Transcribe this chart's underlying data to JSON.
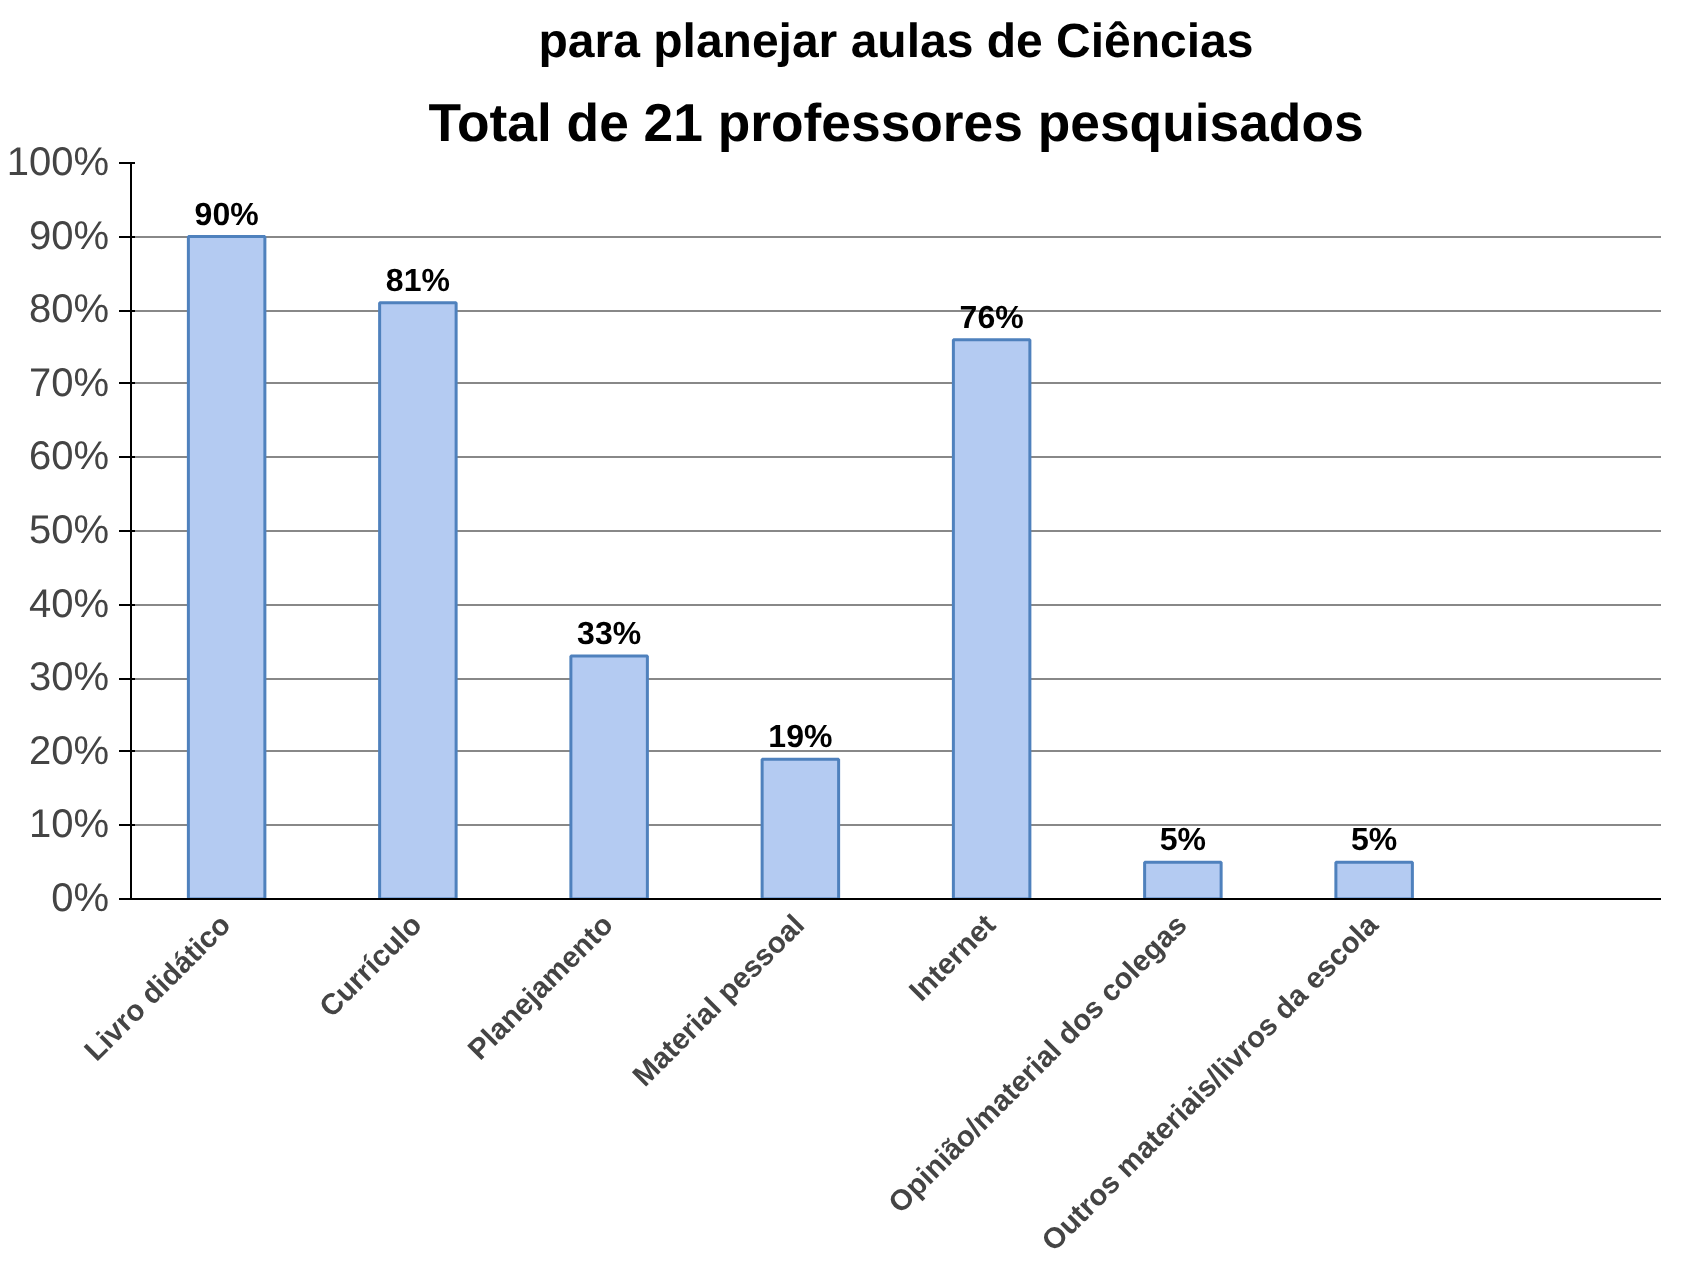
{
  "chart_data": {
    "type": "bar",
    "title": "para planejar aulas de Ciências",
    "subtitle": "Total de 21 professores pesquisados",
    "categories": [
      "Livro didático",
      "Currículo",
      "Planejamento",
      "Material pessoal",
      "Internet",
      "Opinião/material dos colegas",
      "Outros materiais/livros da escola",
      null
    ],
    "values": [
      90,
      81,
      33,
      19,
      76,
      5,
      5,
      null
    ],
    "value_labels": [
      "90%",
      "81%",
      "33%",
      "19%",
      "76%",
      "5%",
      "5%",
      null
    ],
    "color": "#b4cbf2",
    "ylim": [
      0,
      100
    ],
    "yticks": [
      {
        "value": 0,
        "label": "0%"
      },
      {
        "value": 10,
        "label": "10%"
      },
      {
        "value": 20,
        "label": "20%"
      },
      {
        "value": 30,
        "label": "30%"
      },
      {
        "value": 40,
        "label": "40%"
      },
      {
        "value": 50,
        "label": "50%"
      },
      {
        "value": 60,
        "label": "60%"
      },
      {
        "value": 70,
        "label": "70%"
      },
      {
        "value": 80,
        "label": "80%"
      },
      {
        "value": 90,
        "label": "90%"
      },
      {
        "value": 100,
        "label": "100%"
      }
    ],
    "grid": "y"
  }
}
